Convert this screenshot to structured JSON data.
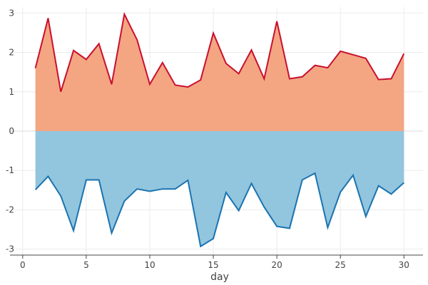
{
  "chart_data": {
    "type": "area",
    "xlabel": "day",
    "ylabel": "",
    "xlim": [
      -1,
      31.5
    ],
    "ylim": [
      -3.15,
      3.15
    ],
    "xticks": [
      0,
      5,
      10,
      15,
      20,
      25,
      30
    ],
    "yticks": [
      -3,
      -2,
      -1,
      0,
      1,
      2,
      3
    ],
    "grid": true,
    "legend": "none",
    "x": [
      1,
      2,
      3,
      4,
      5,
      6,
      7,
      8,
      9,
      10,
      11,
      12,
      13,
      14,
      15,
      16,
      17,
      18,
      19,
      20,
      21,
      22,
      23,
      24,
      25,
      26,
      27,
      28,
      29,
      30
    ],
    "series": [
      {
        "color": "#c8102e",
        "fill": "#f4a582",
        "values": [
          1.6,
          2.87,
          1.0,
          2.05,
          1.82,
          2.22,
          1.19,
          2.97,
          2.32,
          1.19,
          1.74,
          1.17,
          1.12,
          1.3,
          2.49,
          1.72,
          1.46,
          2.06,
          1.33,
          2.79,
          1.33,
          1.38,
          1.67,
          1.61,
          2.03,
          1.94,
          1.85,
          1.31,
          1.33,
          1.97
        ]
      },
      {
        "color": "#1a74b0",
        "fill": "#92c5de",
        "values": [
          -1.49,
          -1.15,
          -1.65,
          -2.53,
          -1.24,
          -1.24,
          -2.59,
          -1.78,
          -1.47,
          -1.53,
          -1.47,
          -1.47,
          -1.25,
          -2.93,
          -2.73,
          -1.56,
          -2.02,
          -1.33,
          -1.93,
          -2.42,
          -2.47,
          -1.24,
          -1.07,
          -2.45,
          -1.55,
          -1.12,
          -2.17,
          -1.39,
          -1.6,
          -1.31
        ]
      }
    ]
  }
}
